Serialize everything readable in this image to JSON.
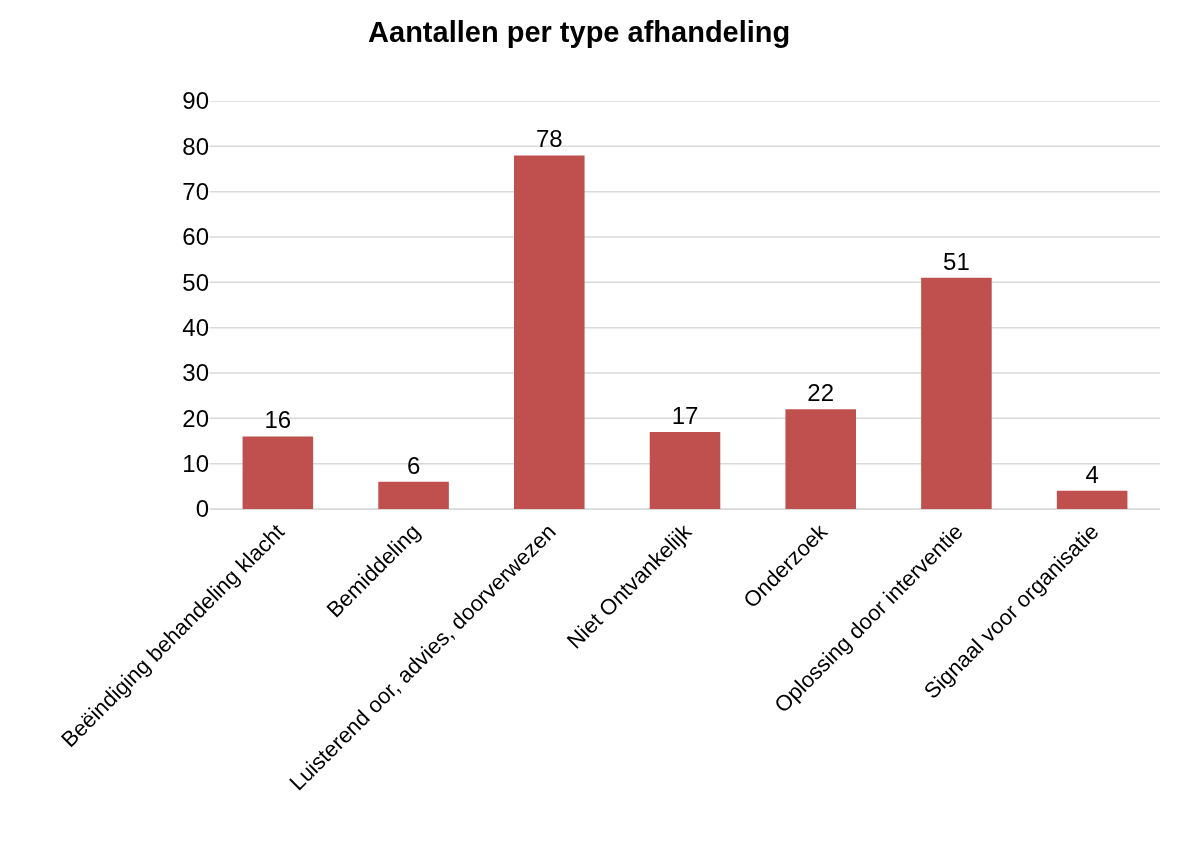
{
  "chart_data": {
    "type": "bar",
    "title": "Aantallen per type afhandeling",
    "categories": [
      "Beëindiging behandeling klacht",
      "Bemiddeling",
      "Luisterend oor, advies, doorverwezen",
      "Niet Ontvankelijk",
      "Onderzoek",
      "Oplossing door interventie",
      "Signaal voor organisatie"
    ],
    "values": [
      16,
      6,
      78,
      17,
      22,
      51,
      4
    ],
    "color": "#c0504d",
    "ylim": [
      0,
      90
    ],
    "yticks": [
      0,
      10,
      20,
      30,
      40,
      50,
      60,
      70,
      80,
      90
    ],
    "grid": "y",
    "data_labels": true
  }
}
